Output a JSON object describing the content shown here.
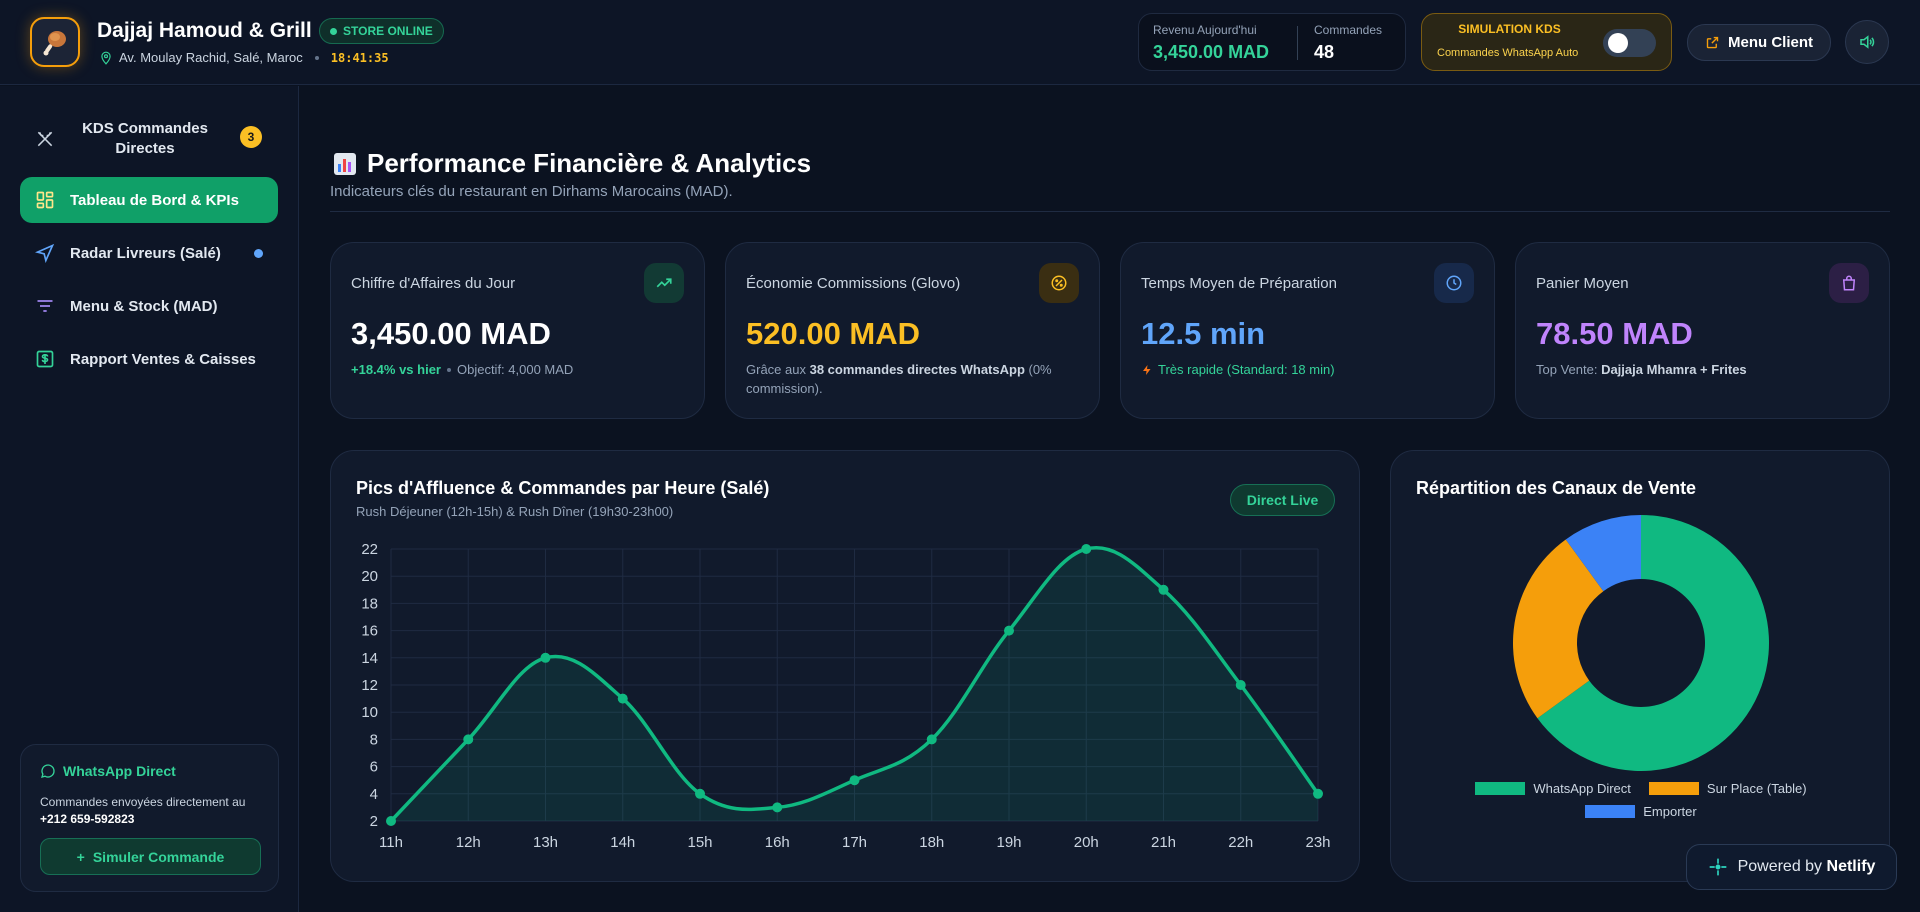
{
  "header": {
    "brand_name": "Dajjaj Hamoud & Grill",
    "store_status": "STORE ONLINE",
    "address": "Av. Moulay Rachid, Salé, Maroc",
    "clock": "18:41:35",
    "revenue_label": "Revenu Aujourd'hui",
    "revenue_value": "3,450.00 MAD",
    "orders_label": "Commandes",
    "orders_value": "48",
    "simulation_title": "SIMULATION KDS",
    "simulation_sub": "Commandes WhatsApp Auto",
    "simulation_enabled": false,
    "menu_client_label": "Menu Client"
  },
  "sidebar": {
    "items": [
      {
        "label": "KDS Commandes Directes",
        "icon": "utensils-icon",
        "badge": "3"
      },
      {
        "label": "Tableau de Bord & KPIs",
        "icon": "dashboard-icon",
        "active": true
      },
      {
        "label": "Radar Livreurs (Salé)",
        "icon": "navigation-icon"
      },
      {
        "label": "Menu & Stock (MAD)",
        "icon": "filter-icon"
      },
      {
        "label": "Rapport Ventes & Caisses",
        "icon": "dollar-icon"
      }
    ],
    "whatsapp": {
      "title": "WhatsApp Direct",
      "desc": "Commandes envoyées directement au ",
      "phone": "+212 659-592823",
      "button": "Simuler Commande"
    }
  },
  "main": {
    "title": "Performance Financière & Analytics",
    "subtitle": "Indicateurs clés du restaurant en Dirhams Marocains (MAD).",
    "kpis": [
      {
        "title": "Chiffre d'Affaires du Jour",
        "value": "3,450.00 MAD",
        "trend": "+18.4% vs hier",
        "objective": "Objectif: 4,000 MAD",
        "color": "#ffffff"
      },
      {
        "title": "Économie Commissions (Glovo)",
        "value": "520.00 MAD",
        "sub_a": "Grâce aux ",
        "sub_b": "38 commandes directes WhatsApp",
        "sub_c": " (0% commission).",
        "color": "#fbbf24"
      },
      {
        "title": "Temps Moyen de Préparation",
        "value": "12.5 min",
        "sub": "Très rapide (Standard: 18 min)",
        "color": "#60a5fa"
      },
      {
        "title": "Panier Moyen",
        "value": "78.50 MAD",
        "sub_a": "Top Vente: ",
        "sub_b": "Dajjaja Mhamra + Frites",
        "color": "#c084fc"
      }
    ],
    "chart_title": "Pics d'Affluence & Commandes par Heure (Salé)",
    "chart_subtitle": "Rush Déjeuner (12h-15h) & Rush Dîner (19h30-23h00)",
    "live_label": "Direct Live",
    "donut_title": "Répartition des Canaux de Vente"
  },
  "chart_data": [
    {
      "type": "line",
      "x": [
        "11h",
        "12h",
        "13h",
        "14h",
        "15h",
        "16h",
        "17h",
        "18h",
        "19h",
        "20h",
        "21h",
        "22h",
        "23h"
      ],
      "series": [
        {
          "values": [
            2,
            8,
            14,
            11,
            4,
            3,
            5,
            8,
            16,
            22,
            19,
            12,
            4
          ],
          "color": "#10b981"
        }
      ],
      "ylim": [
        2,
        22
      ],
      "yticks": [
        2,
        4,
        6,
        8,
        10,
        12,
        14,
        16,
        18,
        20,
        22
      ],
      "grid": true,
      "area_fill": true
    },
    {
      "type": "pie",
      "donut": true,
      "categories": [
        "WhatsApp Direct",
        "Sur Place (Table)",
        "Emporter"
      ],
      "values": [
        65,
        25,
        10
      ],
      "colors": [
        "#10b981",
        "#f59e0b",
        "#3b82f6"
      ],
      "legend": "bottom"
    }
  ],
  "footer": {
    "powered_by": "Powered by",
    "netlify": "Netlify"
  }
}
